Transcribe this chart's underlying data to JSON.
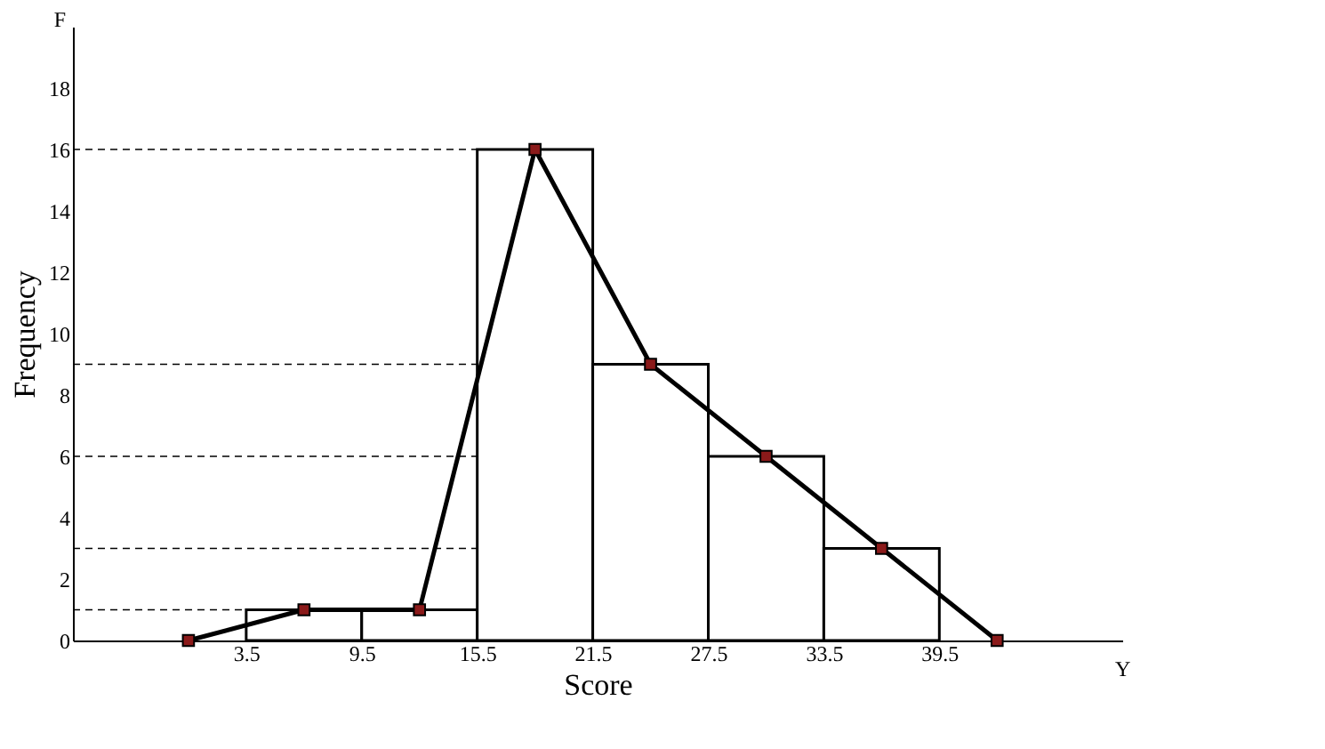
{
  "chart_data": {
    "type": "histogram",
    "xlabel": "Score",
    "ylabel": "Frequency",
    "annotations": [
      "F",
      "Y"
    ],
    "bins": [
      3.5,
      9.5,
      15.5,
      21.5,
      27.5,
      33.5,
      39.5
    ],
    "values": [
      1,
      1,
      16,
      9,
      6,
      3
    ],
    "color": "#ffffff",
    "series": [
      {
        "type": "line",
        "x": [
          0.5,
          6.5,
          12.5,
          18.5,
          24.5,
          30.5,
          36.5,
          42.5
        ],
        "values": [
          0,
          1,
          1,
          16,
          9,
          6,
          3,
          0
        ],
        "color": "#000000",
        "marker": "square"
      }
    ],
    "ref_lines": [
      {
        "axis": "y",
        "value": 1,
        "line_style": "dashed"
      },
      {
        "axis": "y",
        "value": 3,
        "line_style": "dashed"
      },
      {
        "axis": "y",
        "value": 6,
        "line_style": "dashed"
      },
      {
        "axis": "y",
        "value": 9,
        "line_style": "dashed"
      },
      {
        "axis": "y",
        "value": 16,
        "line_style": "dashed"
      }
    ],
    "xlim": [
      -5.5,
      49
    ],
    "xticks": [
      3.5,
      9.5,
      15.5,
      21.5,
      27.5,
      33.5,
      39.5
    ],
    "ylim": [
      0,
      20
    ],
    "yticks": [
      0,
      2,
      4,
      6,
      8,
      10,
      12,
      14,
      16,
      18
    ],
    "grid": false
  }
}
